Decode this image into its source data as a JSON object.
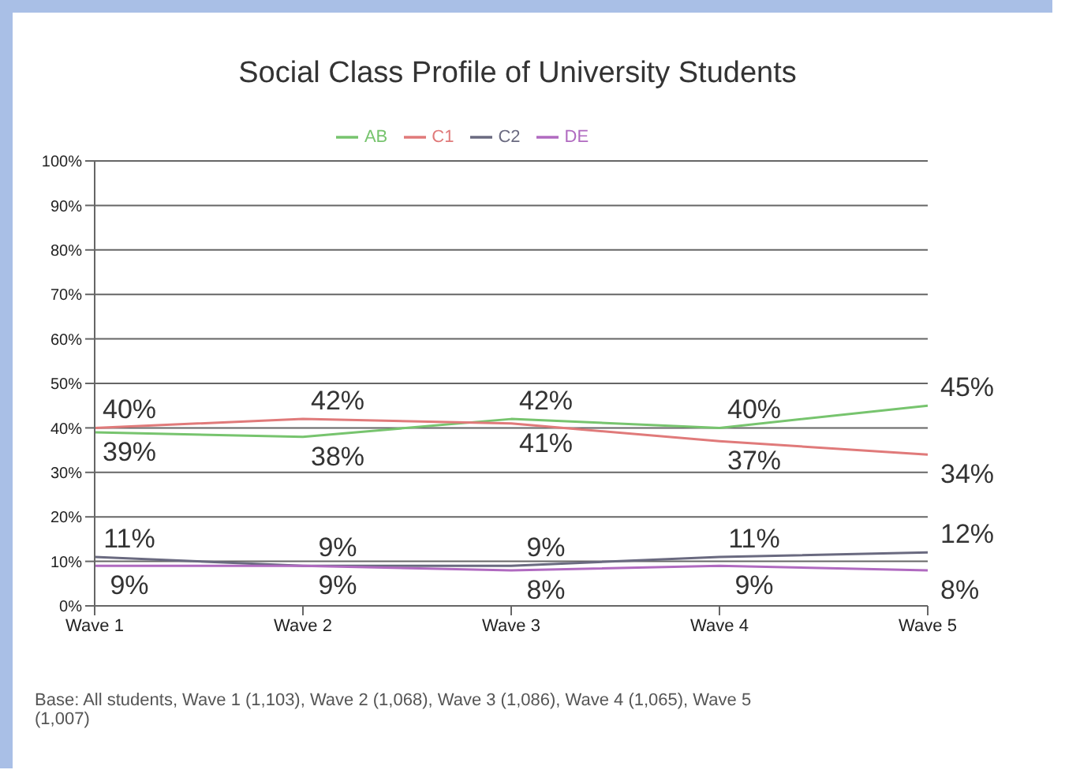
{
  "chart_data": {
    "type": "line",
    "title": "Social Class Profile of University Students",
    "categories": [
      "Wave 1",
      "Wave 2",
      "Wave 3",
      "Wave 4",
      "Wave 5"
    ],
    "series": [
      {
        "name": "AB",
        "color": "#77c46e",
        "values": [
          39,
          38,
          42,
          40,
          45
        ],
        "value_labels": [
          "39%",
          "38%",
          "42%",
          "40%",
          "45%"
        ]
      },
      {
        "name": "C1",
        "color": "#e07a7a",
        "values": [
          40,
          42,
          41,
          37,
          34
        ],
        "value_labels": [
          "40%",
          "42%",
          "41%",
          "37%",
          "34%"
        ]
      },
      {
        "name": "C2",
        "color": "#6a6a80",
        "values": [
          11,
          9,
          9,
          11,
          12
        ],
        "value_labels": [
          "11%",
          "9%",
          "9%",
          "11%",
          "12%"
        ]
      },
      {
        "name": "DE",
        "color": "#b06ac0",
        "values": [
          9,
          9,
          8,
          9,
          8
        ],
        "value_labels": [
          "9%",
          "9%",
          "8%",
          "9%",
          "8%"
        ]
      }
    ],
    "ylim": [
      0,
      100
    ],
    "yticks": [
      {
        "value": 0,
        "label": "0%"
      },
      {
        "value": 10,
        "label": "10%"
      },
      {
        "value": 20,
        "label": "20%"
      },
      {
        "value": 30,
        "label": "30%"
      },
      {
        "value": 40,
        "label": "40%"
      },
      {
        "value": 50,
        "label": "50%"
      },
      {
        "value": 60,
        "label": "60%"
      },
      {
        "value": 70,
        "label": "70%"
      },
      {
        "value": 80,
        "label": "80%"
      },
      {
        "value": 90,
        "label": "90%"
      },
      {
        "value": 100,
        "label": "100%"
      }
    ],
    "grid": "y",
    "legend": "top",
    "marker": "none",
    "line_style": "solid",
    "annotations": [
      "Base: All students, Wave 1 (1,103), Wave 2 (1,068), Wave 3 (1,086), Wave 4 (1,065), Wave 5 (1,007)"
    ]
  }
}
